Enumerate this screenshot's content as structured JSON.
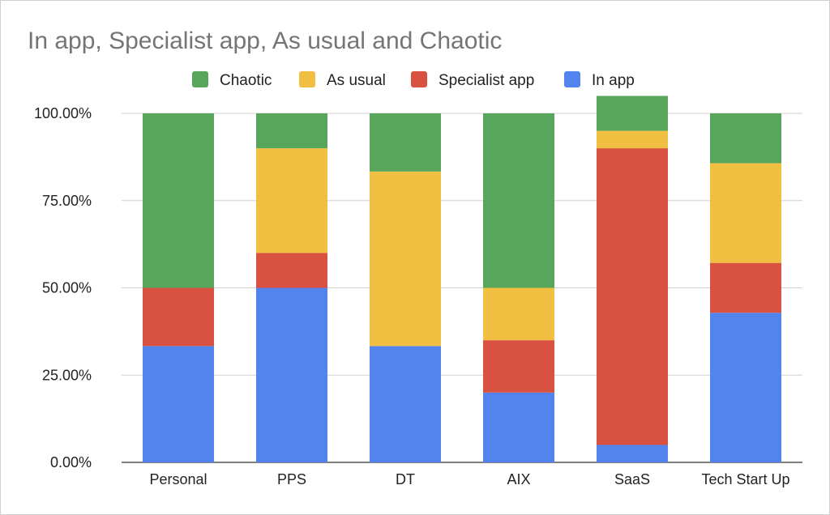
{
  "chart_data": {
    "type": "bar",
    "stacked": true,
    "title": "In app, Specialist app, As usual and Chaotic",
    "legend_position": "top",
    "categories": [
      "Personal",
      "PPS",
      "DT",
      "AIX",
      "SaaS",
      "Tech Start Up"
    ],
    "series": [
      {
        "name": "In app",
        "color": "#5383ec",
        "values": [
          33.33,
          50,
          33.33,
          20,
          5,
          42.86
        ]
      },
      {
        "name": "Specialist app",
        "color": "#d95140",
        "values": [
          16.67,
          10,
          0,
          15,
          85,
          14.29
        ]
      },
      {
        "name": "As usual",
        "color": "#f1bf42",
        "values": [
          0,
          30,
          50,
          15,
          5,
          28.57
        ]
      },
      {
        "name": "Chaotic",
        "color": "#58a65c",
        "values": [
          50,
          10,
          16.67,
          50,
          10,
          14.28
        ]
      }
    ],
    "legend_order": [
      "Chaotic",
      "As usual",
      "Specialist app",
      "In app"
    ],
    "ylim": [
      0,
      100
    ],
    "yticks": [
      "0.00%",
      "25.00%",
      "50.00%",
      "75.00%",
      "100.00%"
    ],
    "grid": true,
    "xlabel": "",
    "ylabel": ""
  }
}
